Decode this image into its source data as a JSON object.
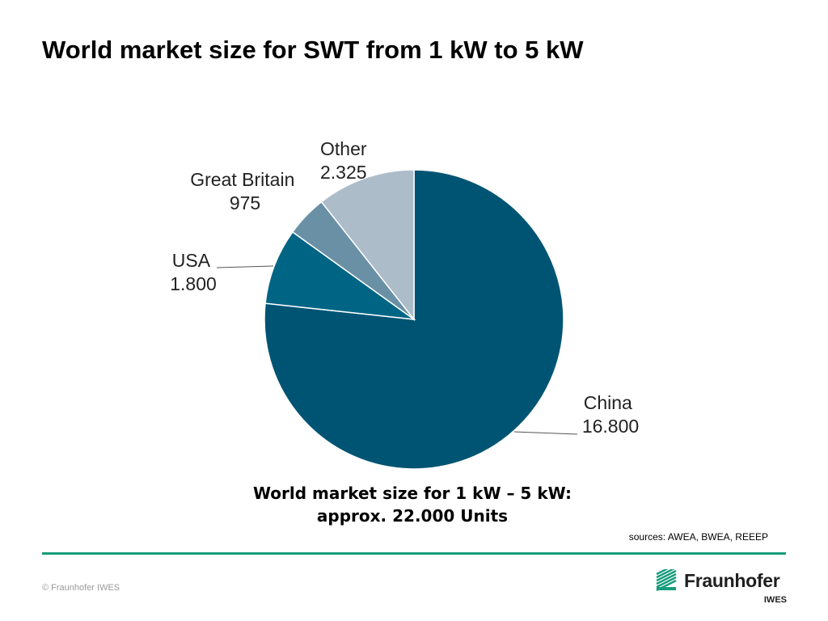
{
  "slide": {
    "title": "World market size for SWT from 1 kW to 5 kW",
    "summary_line1": "World market size for 1 kW – 5 kW:",
    "summary_line2": "approx. 22.000 Units",
    "sources": "sources: AWEA, BWEA, REEEP",
    "copyright": "© Fraunhofer IWES"
  },
  "logo": {
    "name": "Fraunhofer",
    "sub": "IWES",
    "mark_color": "#179c7d"
  },
  "colors": {
    "divider": "#179c7d"
  },
  "chart_data": {
    "type": "pie",
    "start": "12 o'clock, clockwise",
    "slices": [
      {
        "name": "China",
        "value": 16800,
        "value_label": "16.800",
        "color": "#005473"
      },
      {
        "name": "USA",
        "value": 1800,
        "value_label": "1.800",
        "color": "#006585"
      },
      {
        "name": "Great Britain",
        "value": 975,
        "value_label": "975",
        "color": "#6a90a6"
      },
      {
        "name": "Other",
        "value": 2325,
        "value_label": "2.325",
        "color": "#adbcc9"
      }
    ]
  }
}
